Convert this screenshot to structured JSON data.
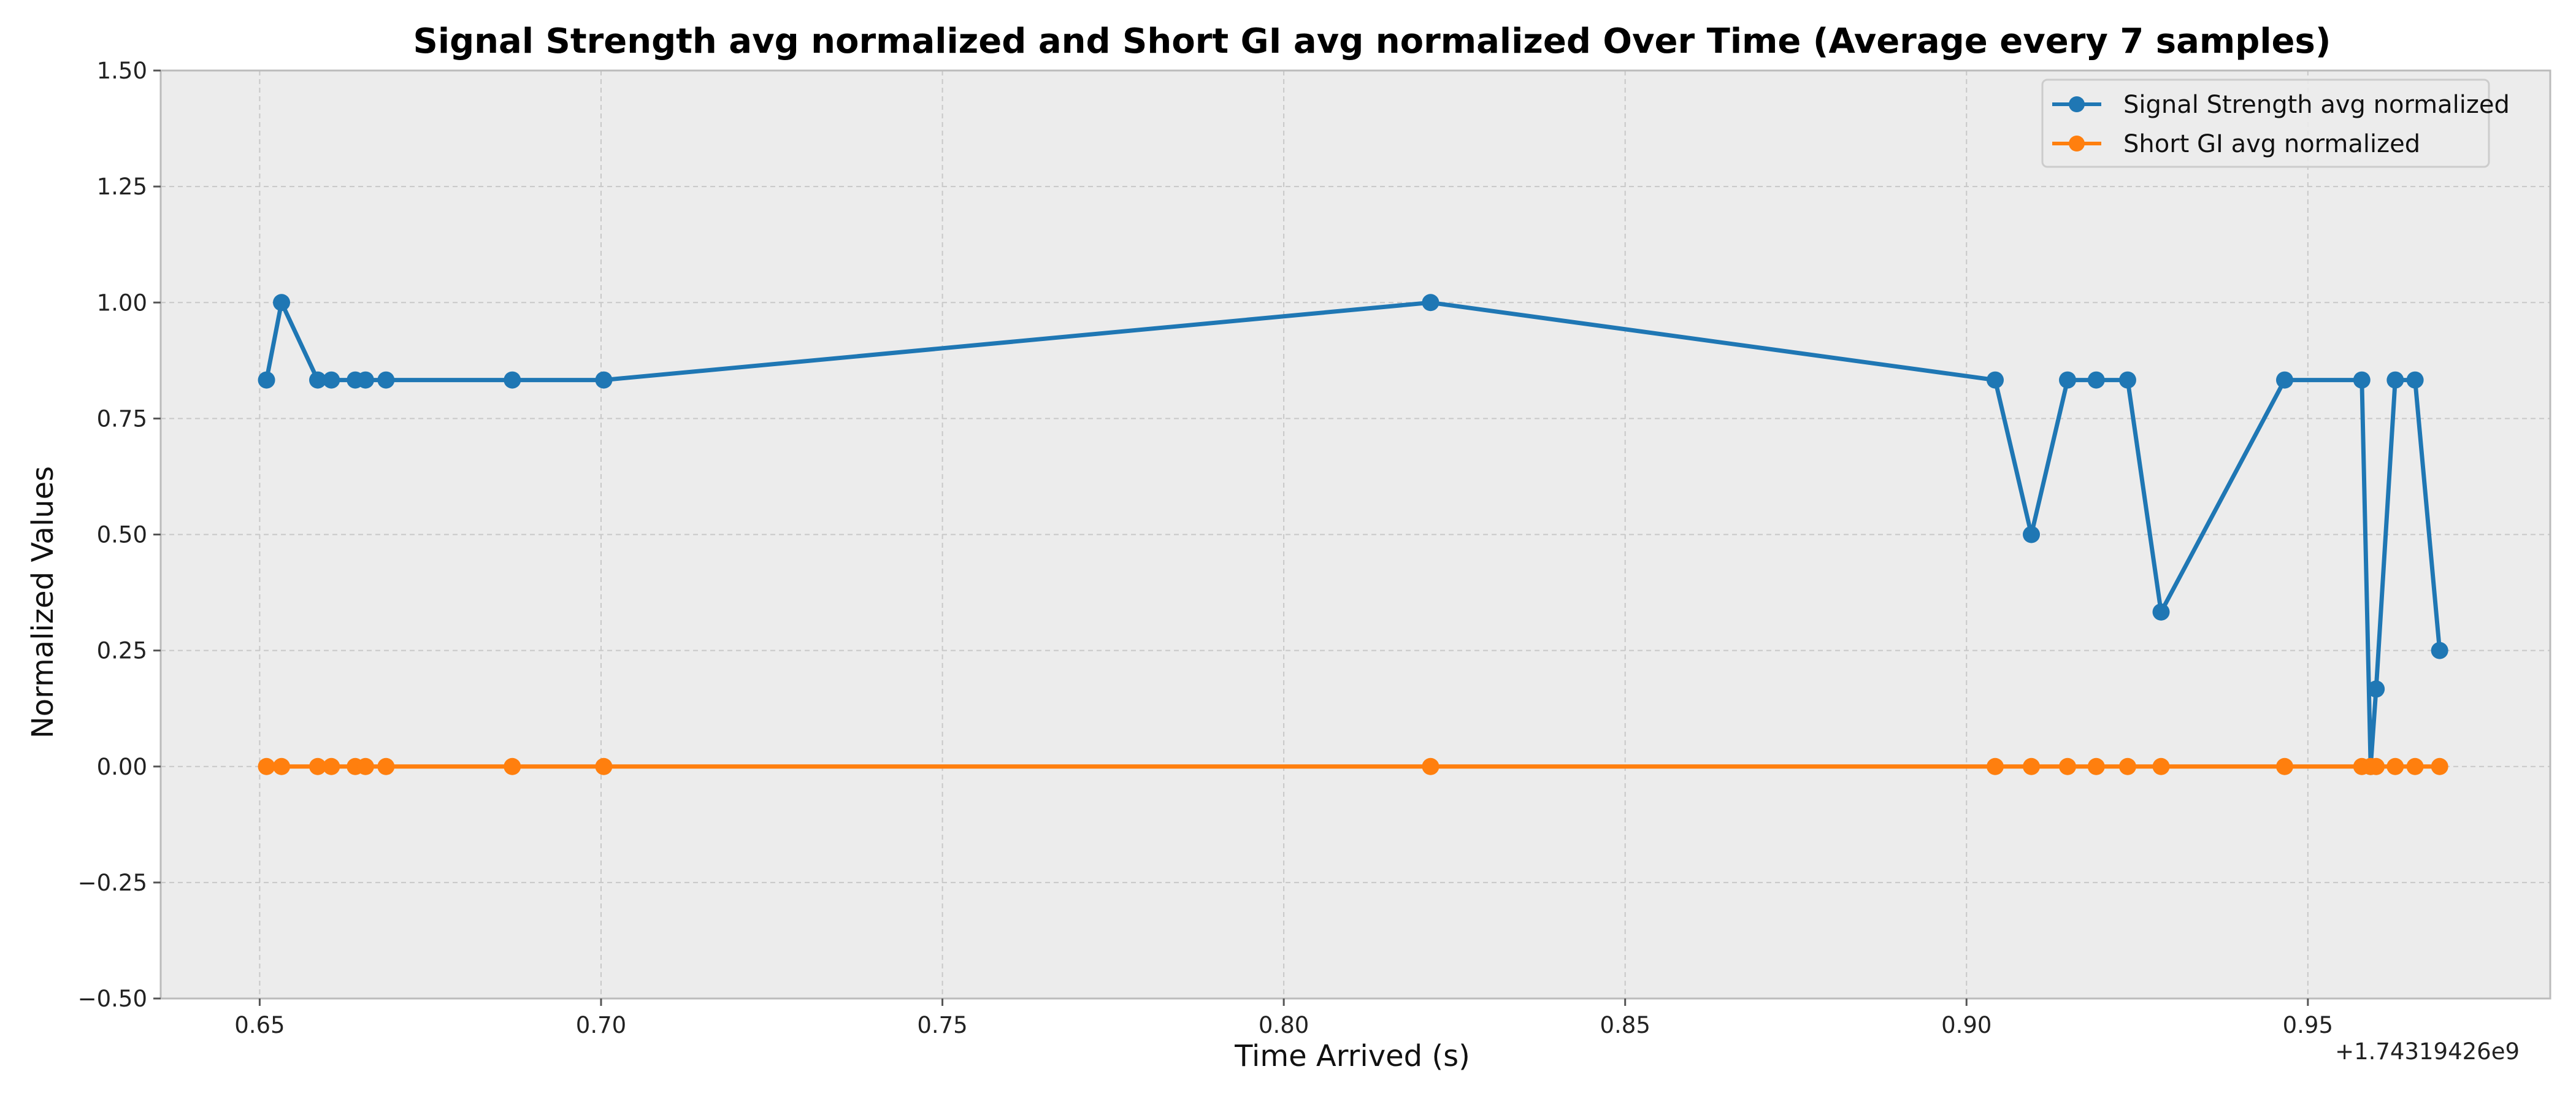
{
  "chart_data": {
    "type": "line",
    "title": "Signal Strength avg normalized and Short GI avg normalized Over Time (Average every 7 samples)",
    "xlabel": "Time Arrived (s)",
    "ylabel": "Normalized Values",
    "x_offset_label": "+1.74319426e9",
    "xlim": [
      0.6355,
      0.9855
    ],
    "ylim": [
      -0.5,
      1.5
    ],
    "x_ticks": [
      0.65,
      0.7,
      0.75,
      0.8,
      0.85,
      0.9,
      0.95
    ],
    "x_tick_labels": [
      "0.65",
      "0.70",
      "0.75",
      "0.80",
      "0.85",
      "0.90",
      "0.95"
    ],
    "y_ticks": [
      -0.5,
      -0.25,
      0.0,
      0.25,
      0.5,
      0.75,
      1.0,
      1.25,
      1.5
    ],
    "y_tick_labels": [
      "−0.50",
      "−0.25",
      "0.00",
      "0.25",
      "0.50",
      "0.75",
      "1.00",
      "1.25",
      "1.50"
    ],
    "grid": true,
    "legend_position": "top-right",
    "series": [
      {
        "name": "Signal Strength avg normalized",
        "color": "#1f77b4",
        "x": [
          0.651,
          0.6532,
          0.6585,
          0.6605,
          0.664,
          0.6655,
          0.6685,
          0.687,
          0.7004,
          0.8215,
          0.9042,
          0.9095,
          0.9148,
          0.919,
          0.9236,
          0.9285,
          0.9466,
          0.9579,
          0.9592,
          0.96,
          0.9628,
          0.9657,
          0.9693
        ],
        "y": [
          0.833,
          1.0,
          0.833,
          0.833,
          0.833,
          0.833,
          0.833,
          0.833,
          0.833,
          1.0,
          0.833,
          0.5,
          0.833,
          0.833,
          0.833,
          0.333,
          0.833,
          0.833,
          0.0,
          0.167,
          0.833,
          0.833,
          0.25
        ]
      },
      {
        "name": "Short GI avg normalized",
        "color": "#ff7f0e",
        "x": [
          0.651,
          0.6532,
          0.6585,
          0.6605,
          0.664,
          0.6655,
          0.6685,
          0.687,
          0.7004,
          0.8215,
          0.9042,
          0.9095,
          0.9148,
          0.919,
          0.9236,
          0.9285,
          0.9466,
          0.9579,
          0.9592,
          0.96,
          0.9628,
          0.9657,
          0.9693
        ],
        "y": [
          0,
          0,
          0,
          0,
          0,
          0,
          0,
          0,
          0,
          0,
          0,
          0,
          0,
          0,
          0,
          0,
          0,
          0,
          0,
          0,
          0,
          0,
          0
        ]
      }
    ]
  }
}
